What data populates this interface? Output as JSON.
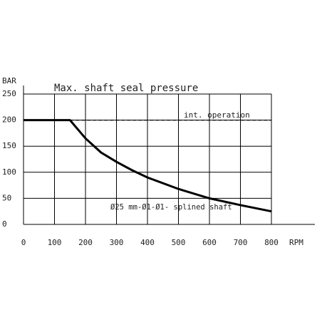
{
  "chart_data": {
    "type": "line",
    "title": "Max. shaft seal pressure",
    "x_label": "RPM",
    "y_label": "BAR",
    "annotations": [
      "int. operation",
      "Ø25 mm-Ø1-Ø1- splined shaft"
    ],
    "xlim": [
      0,
      800
    ],
    "xticks": [
      0,
      100,
      200,
      300,
      400,
      500,
      600,
      700,
      800
    ],
    "ylim": [
      0,
      250
    ],
    "yticks": [
      0,
      50,
      100,
      150,
      200,
      250
    ],
    "grid": true,
    "series": [
      {
        "color": "#000000",
        "dashed": false,
        "x": [
          0,
          150,
          200,
          250,
          300,
          350,
          400,
          500,
          600,
          700,
          800
        ],
        "values": [
          200,
          200,
          165,
          138,
          120,
          104,
          90,
          68,
          50,
          37,
          25
        ]
      },
      {
        "color": "#000000",
        "dashed": true,
        "x": [
          150,
          800
        ],
        "values": [
          200,
          200
        ]
      }
    ]
  }
}
